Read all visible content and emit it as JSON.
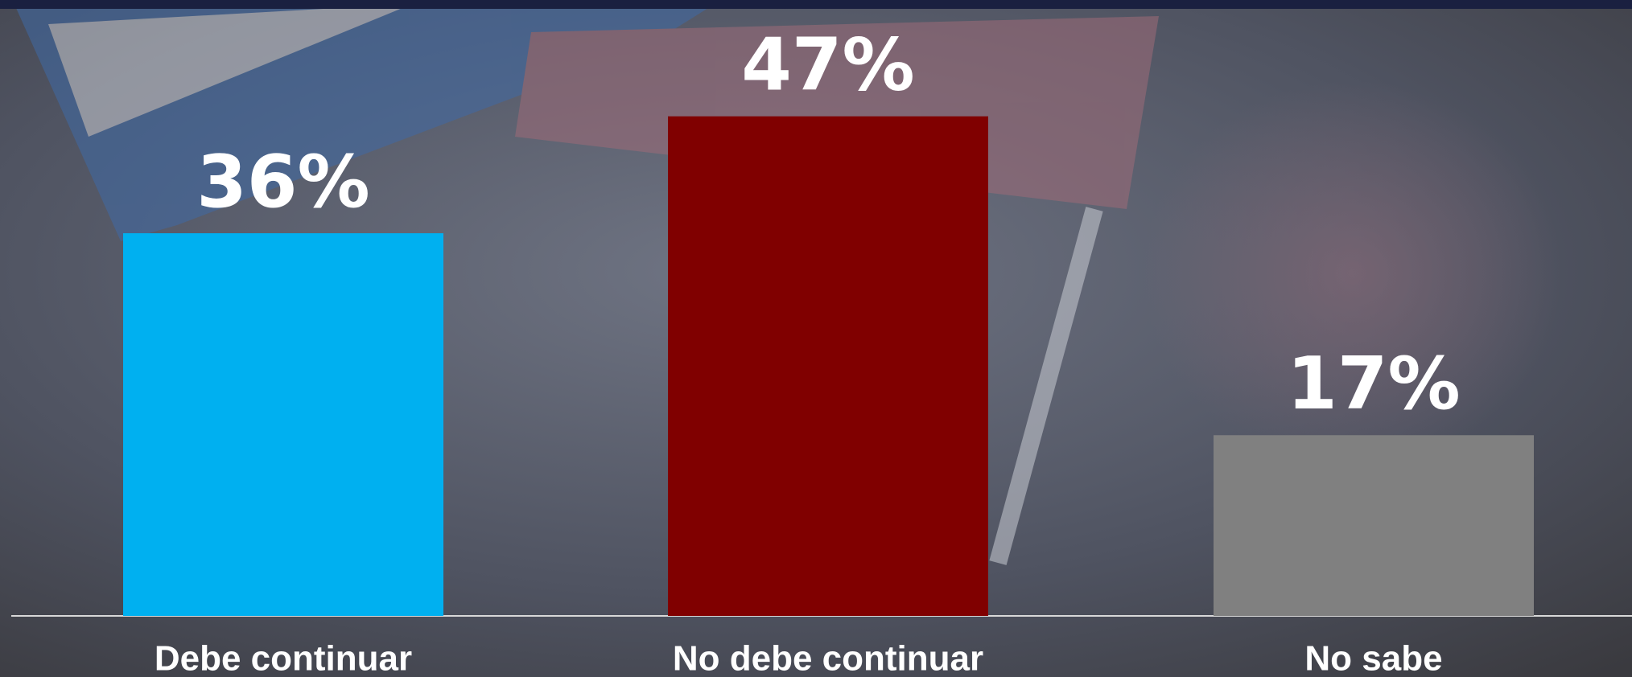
{
  "chart_data": {
    "type": "bar",
    "categories": [
      "Debe continuar",
      "No debe continuar",
      "No sabe"
    ],
    "values": [
      36,
      47,
      17
    ],
    "value_labels": [
      "36%",
      "47%",
      "17%"
    ],
    "colors": [
      "#00b0f0",
      "#800000",
      "#808080"
    ]
  }
}
